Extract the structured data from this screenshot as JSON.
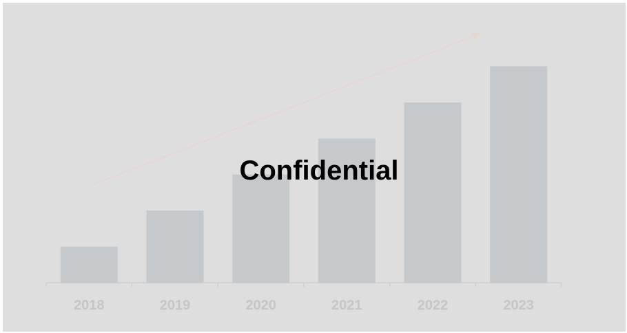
{
  "chart_data": {
    "type": "bar",
    "categories": [
      "2018",
      "2019",
      "2020",
      "2021",
      "2022",
      "2023"
    ],
    "values": [
      1,
      2,
      3,
      4,
      5,
      6
    ],
    "ylim": [
      0,
      7
    ],
    "title": "",
    "xlabel": "",
    "ylabel": "",
    "grid": false,
    "legend": "none",
    "annotations": [
      "trend-arrow"
    ],
    "colors": {
      "bar": "#c6c9cc",
      "background": "#dedede",
      "axis": "#c6c6c6",
      "tick_label": "#c6c6c6",
      "arrow": "#e6d6d2"
    }
  },
  "watermark": "Confidential"
}
